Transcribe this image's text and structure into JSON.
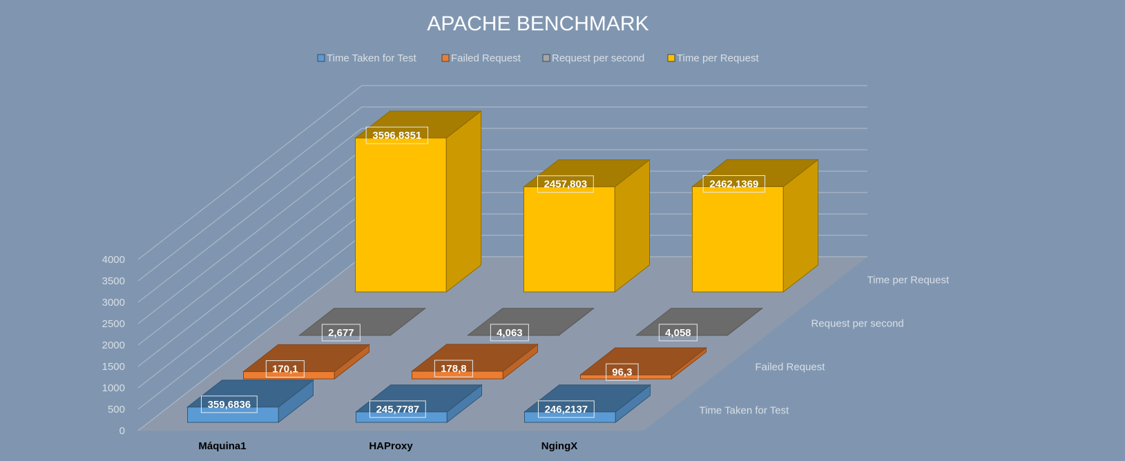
{
  "chart_data": {
    "type": "bar",
    "title": "APACHE BENCHMARK",
    "categories": [
      "Máquina1",
      "HAProxy",
      "NgingX"
    ],
    "series": [
      {
        "name": "Time Taken for Test",
        "values": [
          359.6836,
          245.7787,
          246.2137
        ],
        "labels": [
          "359,6836",
          "245,7787",
          "246,2137"
        ],
        "color": "#5b9bd5"
      },
      {
        "name": "Failed Request",
        "values": [
          170.1,
          178.8,
          96.3
        ],
        "labels": [
          "170,1",
          "178,8",
          "96,3"
        ],
        "color": "#ed7d31"
      },
      {
        "name": "Request per second",
        "values": [
          2.677,
          4.063,
          4.058
        ],
        "labels": [
          "2,677",
          "4,063",
          "4,058"
        ],
        "color": "#a5a5a5"
      },
      {
        "name": "Time per Request",
        "values": [
          3596.8351,
          2457.803,
          2462.1369
        ],
        "labels": [
          "3596,8351",
          "2457,803",
          "2462,1369"
        ],
        "color": "#ffc000"
      }
    ],
    "yticks": [
      "0",
      "500",
      "1000",
      "1500",
      "2000",
      "2500",
      "3000",
      "3500",
      "4000"
    ],
    "ylim": [
      0,
      4000
    ],
    "legend": "top-center",
    "grid": true
  },
  "colors": {
    "background": "#8096b0",
    "title": "#ffffff",
    "legend_text": "#d9dfe7",
    "axis_text": "#d9dfe7",
    "category_text": "#000000",
    "floor": "#8e9aab"
  }
}
